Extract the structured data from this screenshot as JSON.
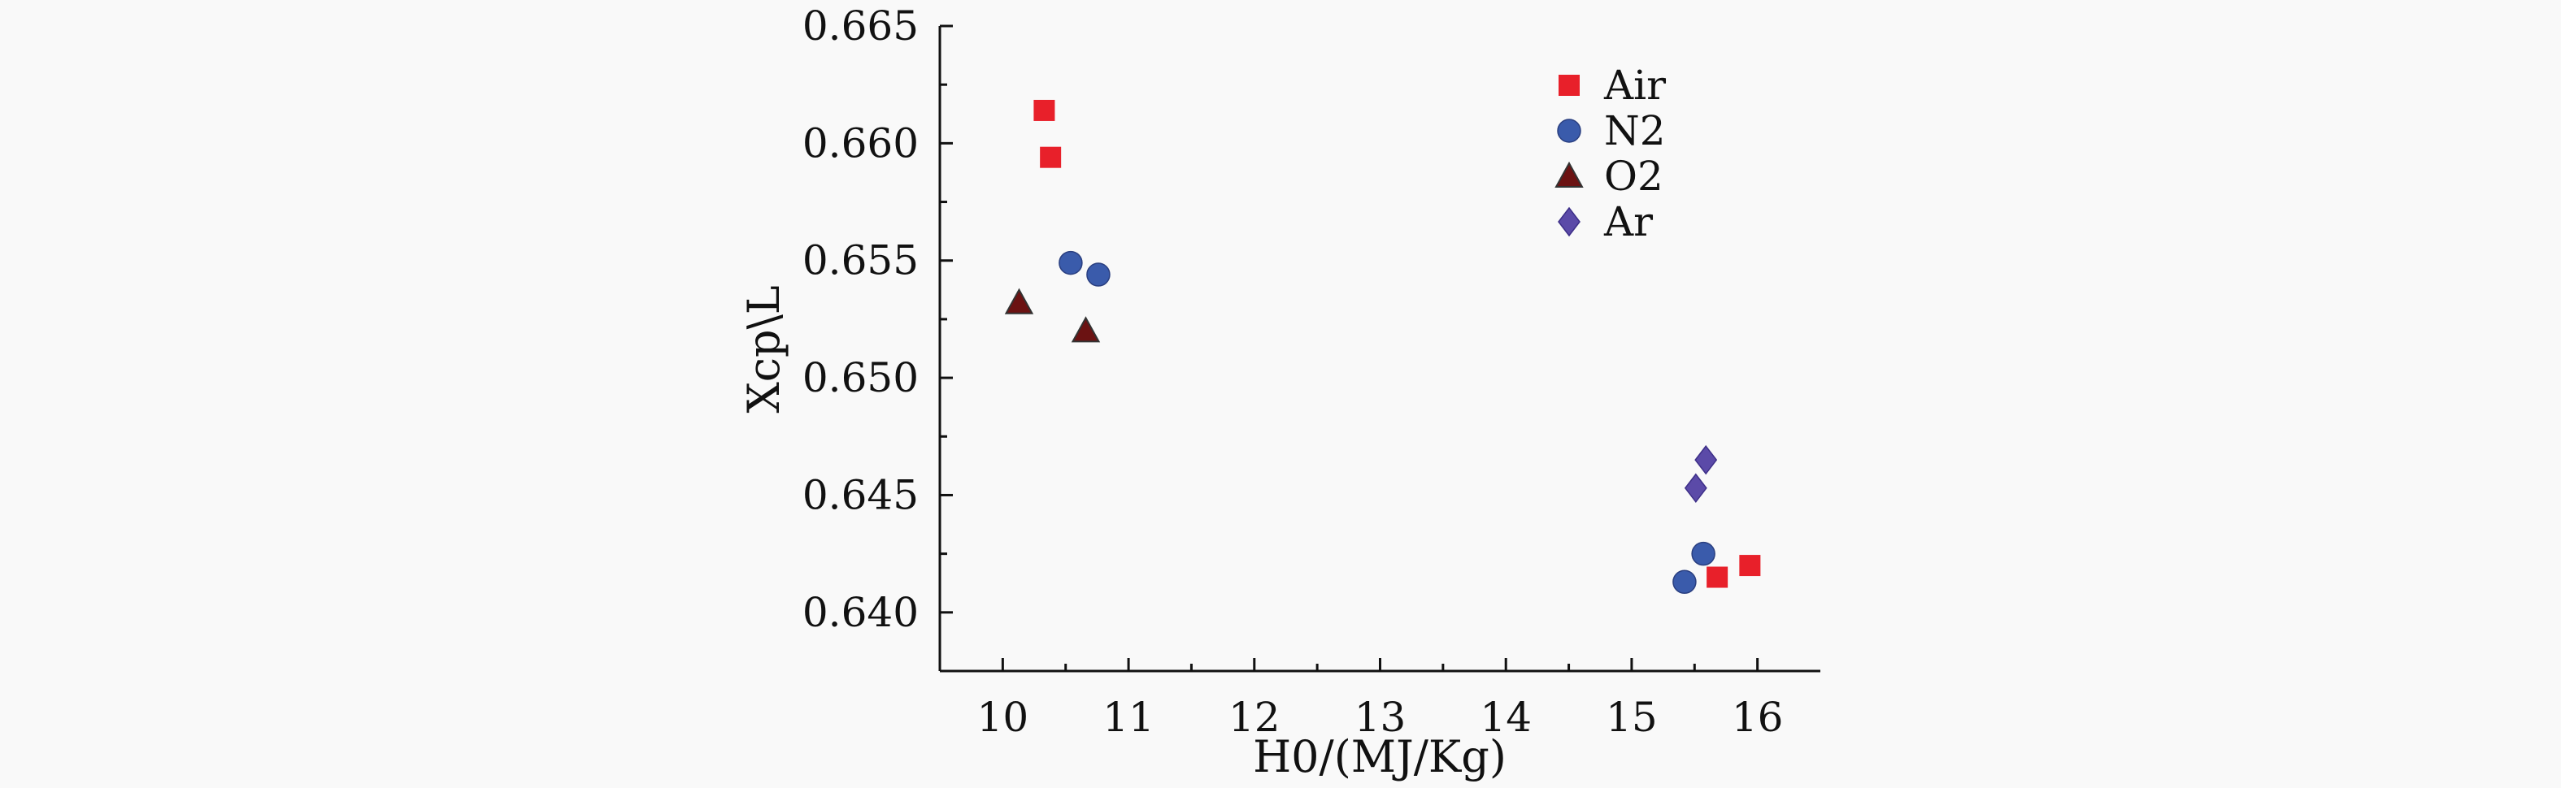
{
  "chart_data": {
    "type": "scatter",
    "xlabel": "H0/(MJ/Kg)",
    "ylabel": "Xcp\\L",
    "xlim": [
      9.5,
      16.5
    ],
    "ylim": [
      0.6375,
      0.665
    ],
    "xticks": [
      10,
      11,
      12,
      13,
      14,
      15,
      16
    ],
    "xtick_labels": [
      "10",
      "11",
      "12",
      "13",
      "14",
      "15",
      "16"
    ],
    "yticks": [
      0.64,
      0.645,
      0.65,
      0.655,
      0.66,
      0.665
    ],
    "ytick_labels": [
      "0.640",
      "0.645",
      "0.650",
      "0.655",
      "0.660",
      "0.665"
    ],
    "grid": false,
    "legend_position": "top-right",
    "series": [
      {
        "name": "Air",
        "marker": "square",
        "color": "#e8202a",
        "x": [
          10.33,
          10.38,
          15.68,
          15.94
        ],
        "y": [
          0.6614,
          0.6594,
          0.6415,
          0.642
        ]
      },
      {
        "name": "N2",
        "marker": "circle",
        "color": "#3a5bab",
        "x": [
          10.54,
          10.76,
          15.57,
          15.42
        ],
        "y": [
          0.6549,
          0.6544,
          0.6425,
          0.6413
        ]
      },
      {
        "name": "O2",
        "marker": "triangle",
        "color": "#6b1212",
        "x": [
          10.13,
          10.66
        ],
        "y": [
          0.6532,
          0.652
        ]
      },
      {
        "name": "Ar",
        "marker": "diamond",
        "color": "#5b4aa8",
        "x": [
          15.59,
          15.51
        ],
        "y": [
          0.6465,
          0.6453
        ]
      }
    ]
  }
}
